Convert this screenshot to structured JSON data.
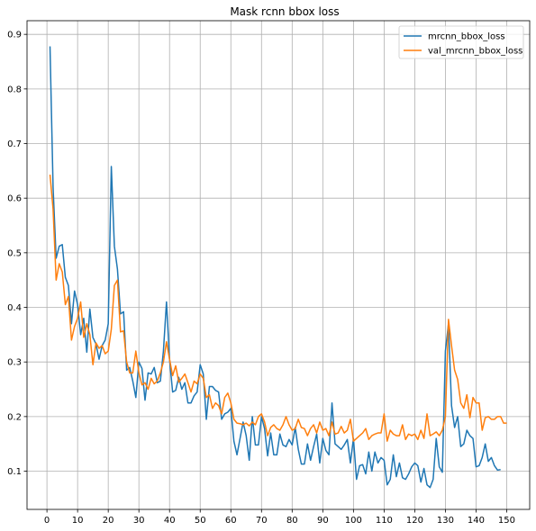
{
  "chart_data": {
    "type": "line",
    "title": "Mask rcnn bbox loss",
    "xlabel": "",
    "ylabel": "",
    "xlim": [
      -6.5,
      157.5
    ],
    "ylim": [
      0.03,
      0.925
    ],
    "grid": true,
    "legend_position": "top-right",
    "x_ticks": [
      0,
      10,
      20,
      30,
      40,
      50,
      60,
      70,
      80,
      90,
      100,
      110,
      120,
      130,
      140,
      150
    ],
    "y_ticks": [
      0.1,
      0.2,
      0.3,
      0.4,
      0.5,
      0.6,
      0.7,
      0.8,
      0.9
    ],
    "series": [
      {
        "name": "mrcnn_bbox_loss",
        "color": "#1f77b4",
        "x_start": 1,
        "values": [
          0.878,
          0.62,
          0.49,
          0.512,
          0.515,
          0.455,
          0.44,
          0.37,
          0.43,
          0.405,
          0.35,
          0.38,
          0.318,
          0.397,
          0.345,
          0.333,
          0.305,
          0.33,
          0.34,
          0.37,
          0.658,
          0.512,
          0.47,
          0.388,
          0.392,
          0.285,
          0.29,
          0.265,
          0.235,
          0.3,
          0.288,
          0.23,
          0.28,
          0.278,
          0.29,
          0.262,
          0.265,
          0.32,
          0.41,
          0.305,
          0.245,
          0.248,
          0.272,
          0.25,
          0.262,
          0.225,
          0.225,
          0.238,
          0.245,
          0.295,
          0.278,
          0.195,
          0.255,
          0.255,
          0.248,
          0.245,
          0.195,
          0.205,
          0.208,
          0.215,
          0.155,
          0.13,
          0.16,
          0.19,
          0.165,
          0.12,
          0.2,
          0.148,
          0.148,
          0.2,
          0.178,
          0.128,
          0.17,
          0.13,
          0.13,
          0.168,
          0.148,
          0.145,
          0.158,
          0.148,
          0.18,
          0.14,
          0.113,
          0.113,
          0.15,
          0.12,
          0.145,
          0.168,
          0.115,
          0.16,
          0.138,
          0.13,
          0.225,
          0.15,
          0.145,
          0.14,
          0.148,
          0.158,
          0.115,
          0.16,
          0.085,
          0.11,
          0.112,
          0.095,
          0.135,
          0.1,
          0.135,
          0.115,
          0.125,
          0.12,
          0.075,
          0.085,
          0.13,
          0.09,
          0.115,
          0.088,
          0.085,
          0.095,
          0.108,
          0.115,
          0.11,
          0.08,
          0.105,
          0.075,
          0.07,
          0.085,
          0.16,
          0.108,
          0.098,
          0.32,
          0.37,
          0.22,
          0.18,
          0.2,
          0.145,
          0.15,
          0.175,
          0.165,
          0.16,
          0.108,
          0.11,
          0.125,
          0.15,
          0.118,
          0.125,
          0.11,
          0.102,
          0.103
        ]
      },
      {
        "name": "val_mrcnn_bbox_loss",
        "color": "#ff7f0e",
        "x_start": 1,
        "values": [
          0.643,
          0.58,
          0.45,
          0.48,
          0.465,
          0.405,
          0.42,
          0.34,
          0.365,
          0.38,
          0.41,
          0.345,
          0.37,
          0.35,
          0.295,
          0.335,
          0.325,
          0.33,
          0.315,
          0.32,
          0.36,
          0.44,
          0.45,
          0.355,
          0.357,
          0.3,
          0.28,
          0.28,
          0.32,
          0.28,
          0.258,
          0.262,
          0.25,
          0.27,
          0.26,
          0.265,
          0.28,
          0.3,
          0.337,
          0.305,
          0.275,
          0.293,
          0.263,
          0.27,
          0.278,
          0.262,
          0.245,
          0.265,
          0.26,
          0.278,
          0.27,
          0.235,
          0.24,
          0.215,
          0.225,
          0.22,
          0.205,
          0.235,
          0.243,
          0.225,
          0.195,
          0.188,
          0.187,
          0.185,
          0.188,
          0.183,
          0.19,
          0.185,
          0.2,
          0.205,
          0.19,
          0.165,
          0.18,
          0.185,
          0.178,
          0.175,
          0.185,
          0.2,
          0.185,
          0.175,
          0.178,
          0.195,
          0.18,
          0.178,
          0.165,
          0.178,
          0.185,
          0.17,
          0.19,
          0.175,
          0.178,
          0.165,
          0.19,
          0.168,
          0.17,
          0.182,
          0.17,
          0.175,
          0.195,
          0.155,
          0.16,
          0.165,
          0.17,
          0.178,
          0.158,
          0.165,
          0.168,
          0.17,
          0.17,
          0.205,
          0.155,
          0.175,
          0.168,
          0.165,
          0.165,
          0.185,
          0.158,
          0.168,
          0.165,
          0.168,
          0.158,
          0.175,
          0.16,
          0.205,
          0.165,
          0.168,
          0.172,
          0.165,
          0.175,
          0.2,
          0.378,
          0.33,
          0.285,
          0.268,
          0.225,
          0.215,
          0.24,
          0.198,
          0.235,
          0.225,
          0.225,
          0.175,
          0.198,
          0.2,
          0.195,
          0.195,
          0.2,
          0.2,
          0.188,
          0.188
        ]
      }
    ]
  }
}
